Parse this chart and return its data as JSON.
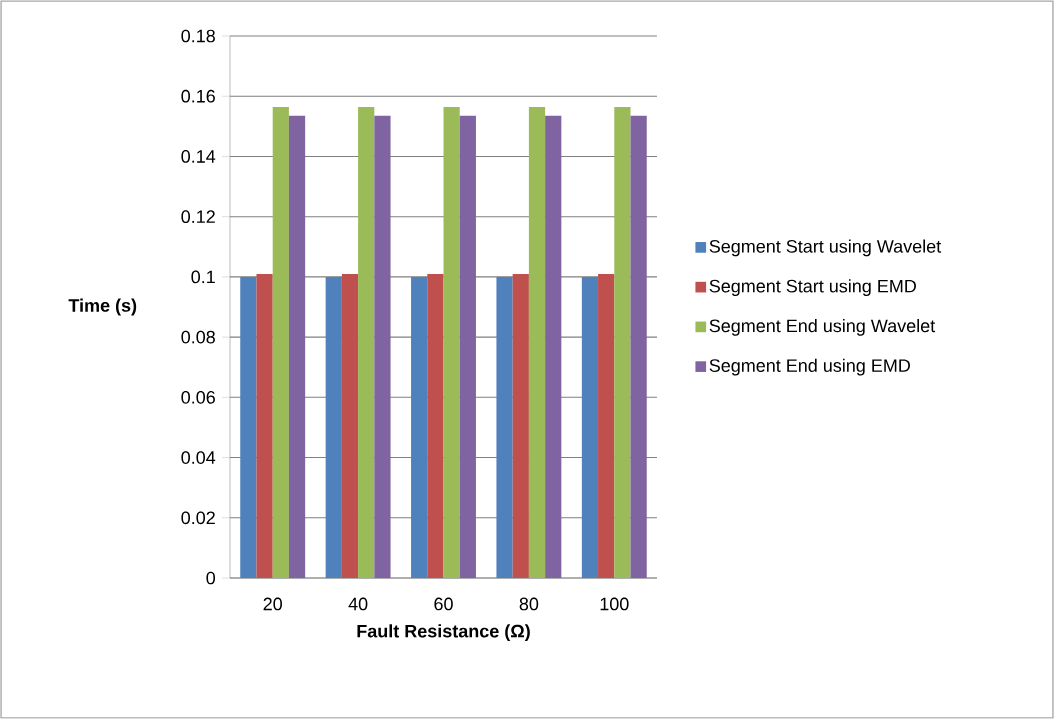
{
  "chart_data": {
    "type": "bar",
    "xlabel": "Fault Resistance (Ω)",
    "ylabel": "Time (s)",
    "categories": [
      "20",
      "40",
      "60",
      "80",
      "100"
    ],
    "series": [
      {
        "name": "Segment Start using Wavelet",
        "color": "#4f81bd",
        "values": [
          0.1,
          0.1,
          0.1,
          0.1,
          0.1
        ]
      },
      {
        "name": "Segment Start using EMD",
        "color": "#c0504d",
        "values": [
          0.101,
          0.101,
          0.101,
          0.101,
          0.101
        ]
      },
      {
        "name": "Segment End using Wavelet",
        "color": "#9bbb59",
        "values": [
          0.1564,
          0.1564,
          0.1564,
          0.1564,
          0.1564
        ]
      },
      {
        "name": "Segment End using EMD",
        "color": "#8064a2",
        "values": [
          0.1535,
          0.1535,
          0.1535,
          0.1535,
          0.1535
        ]
      }
    ],
    "ylim": [
      0,
      0.18
    ],
    "yticks": [
      0,
      0.02,
      0.04,
      0.06,
      0.08,
      0.1,
      0.12,
      0.14,
      0.16,
      0.18
    ],
    "grid": "y",
    "legend": "right"
  }
}
